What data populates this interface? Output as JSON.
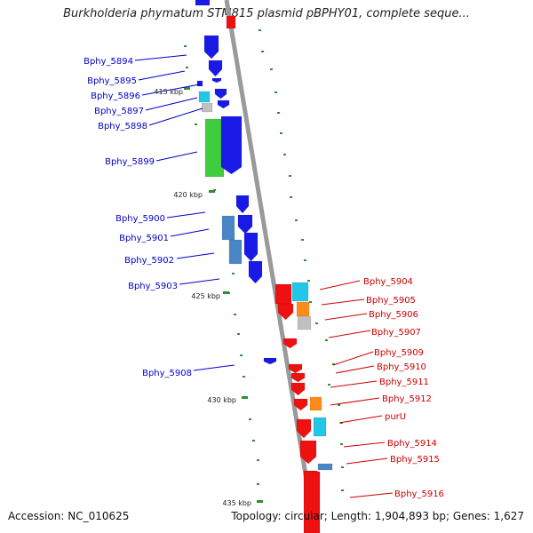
{
  "title": "Burkholderia phymatum STM815 plasmid pBPHY01, complete seque...",
  "accession_text": "Accession: NC_010625",
  "stats_text": "Topology: circular; Length: 1,904,893 bp; Genes: 1,627",
  "colors": {
    "backbone": "#9a9a9a",
    "tick": "#2f8f2f",
    "left_label": "#0000cc",
    "right_label": "#cc0000",
    "blue": "#1a1ae6",
    "red": "#ee1111",
    "green": "#3fcc3f",
    "steel": "#4a86c5",
    "cyan": "#22c6e6",
    "orange": "#ff8c1a",
    "gray": "#c0c0c0"
  },
  "kbp_labels": [
    "415 kbp",
    "420 kbp",
    "425 kbp",
    "430 kbp",
    "435 kbp"
  ],
  "left_genes": [
    "Bphy_5894",
    "Bphy_5895",
    "Bphy_5896",
    "Bphy_5897",
    "Bphy_5898",
    "Bphy_5899",
    "Bphy_5900",
    "Bphy_5901",
    "Bphy_5902",
    "Bphy_5903",
    "Bphy_5908"
  ],
  "right_genes": [
    "Bphy_5904",
    "Bphy_5905",
    "Bphy_5906",
    "Bphy_5907",
    "Bphy_5909",
    "Bphy_5910",
    "Bphy_5911",
    "Bphy_5912",
    "purU",
    "Bphy_5914",
    "Bphy_5915",
    "Bphy_5916"
  ]
}
